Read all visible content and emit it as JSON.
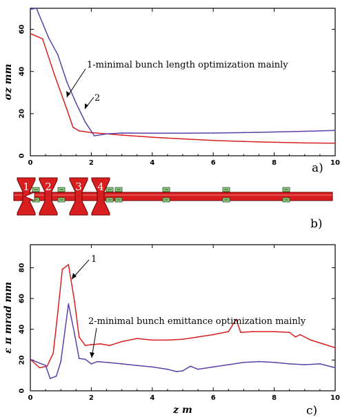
{
  "colors": {
    "series1": "#d81e1e",
    "series2": "#5a3fa8",
    "beam": "#d81e1e",
    "magnet": "#9ad28a"
  },
  "chart_data": [
    {
      "panel": "a)",
      "type": "line",
      "ylabel": "σz mm",
      "xlim": [
        0,
        10
      ],
      "ylim": [
        0,
        70
      ],
      "xticks": [
        "0",
        "2",
        "4",
        "6",
        "8",
        "10"
      ],
      "yticks": [
        "0",
        "20",
        "40",
        "60"
      ],
      "annotations": [
        "1-minimal bunch length optimization mainly",
        "2"
      ],
      "series": [
        {
          "id": "1",
          "color": "#d81e1e",
          "x": [
            0,
            0.4,
            0.8,
            1.2,
            1.4,
            1.6,
            2.0,
            3.0,
            4.0,
            5.0,
            6.0,
            7.0,
            8.0,
            9.0,
            10.0
          ],
          "y": [
            58,
            55.5,
            38,
            22,
            13.5,
            11.8,
            11,
            9.8,
            8.8,
            8,
            7.3,
            6.8,
            6.4,
            6.1,
            6
          ]
        },
        {
          "id": "2",
          "color": "#5a3fa8",
          "x": [
            0,
            0.2,
            0.6,
            0.9,
            1.2,
            1.5,
            1.8,
            2.1,
            2.5,
            3.0,
            4.0,
            5.0,
            6.0,
            7.0,
            8.0,
            9.0,
            10.0
          ],
          "y": [
            69.5,
            70,
            56,
            48,
            35,
            25,
            16,
            9.5,
            10.4,
            10.8,
            10.7,
            10.7,
            10.8,
            11,
            11.3,
            11.6,
            12
          ]
        }
      ]
    },
    {
      "panel": "c)",
      "type": "line",
      "xlabel": "z m",
      "ylabel": "ε π mrad mm",
      "xlim": [
        0,
        10
      ],
      "ylim": [
        0,
        95
      ],
      "xticks": [
        "0",
        "2",
        "4",
        "6",
        "8",
        "10"
      ],
      "yticks": [
        "0",
        "20",
        "40",
        "60",
        "80"
      ],
      "annotations": [
        "1",
        "2-minimal bunch emittance optimization mainly"
      ],
      "series": [
        {
          "id": "1",
          "color": "#d81e1e",
          "x": [
            0,
            0.3,
            0.55,
            0.75,
            0.9,
            1.05,
            1.25,
            1.45,
            1.6,
            1.8,
            2.0,
            2.3,
            2.6,
            3.0,
            3.5,
            4.0,
            4.5,
            5.0,
            5.5,
            6.0,
            6.5,
            6.75,
            6.9,
            7.3,
            8.0,
            8.5,
            8.7,
            8.85,
            9.2,
            9.6,
            10.0
          ],
          "y": [
            20.5,
            15,
            16,
            24.5,
            51,
            79,
            82,
            58,
            35,
            29.5,
            30,
            30.5,
            29.5,
            32,
            34,
            33,
            33,
            33.5,
            35,
            36.5,
            38.5,
            46.5,
            38,
            38.5,
            38.5,
            38,
            35,
            36.5,
            33,
            30.5,
            28
          ]
        },
        {
          "id": "2",
          "color": "#5a3fa8",
          "x": [
            0,
            0.3,
            0.5,
            0.65,
            0.85,
            1.0,
            1.25,
            1.45,
            1.6,
            1.8,
            2.0,
            2.2,
            2.5,
            3.0,
            3.5,
            4.0,
            4.5,
            4.8,
            5.0,
            5.25,
            5.5,
            6.0,
            6.5,
            7.0,
            7.5,
            8.0,
            8.5,
            9.0,
            9.5,
            10.0
          ],
          "y": [
            20.5,
            18,
            16.5,
            8,
            9.5,
            19,
            56.5,
            37,
            21,
            20.5,
            17.5,
            19,
            18.5,
            17.5,
            16.5,
            15.5,
            14,
            12.5,
            13,
            16,
            14,
            15.5,
            17,
            18.5,
            19,
            18.5,
            17.5,
            17,
            17.5,
            15
          ]
        }
      ]
    }
  ],
  "layout_panel": {
    "panel": "b)",
    "cavities": [
      "1",
      "2",
      "3",
      "4"
    ]
  }
}
